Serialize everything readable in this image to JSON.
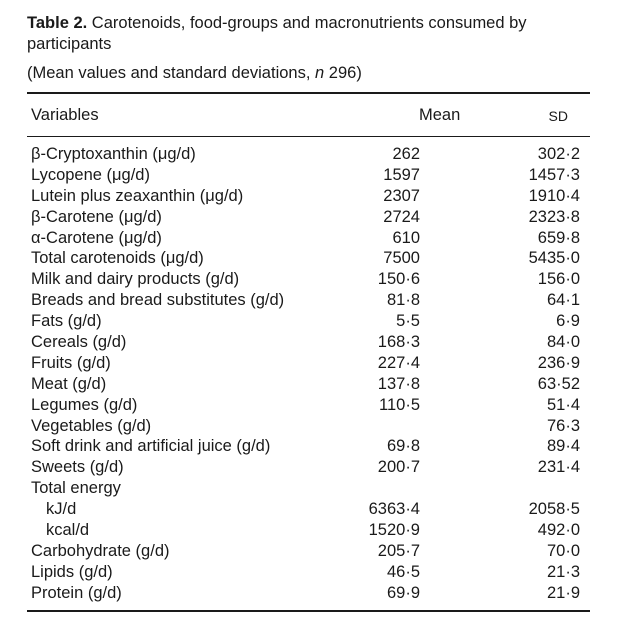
{
  "caption": {
    "label": "Table 2.",
    "text": " Carotenoids, food-groups and macronutrients consumed by participants"
  },
  "subcaption": {
    "prefix": "(Mean values and standard deviations, ",
    "n_symbol": "n",
    "suffix": " 296)"
  },
  "columns": {
    "variables": "Variables",
    "mean": "Mean",
    "sd": "SD"
  },
  "rows": [
    {
      "label": "β-Cryptoxanthin (μg/d)",
      "mean": "262",
      "sd": "302·2"
    },
    {
      "label": "Lycopene (μg/d)",
      "mean": "1597",
      "sd": "1457·3"
    },
    {
      "label": "Lutein plus zeaxanthin (μg/d)",
      "mean": "2307",
      "sd": "1910·4"
    },
    {
      "label": "β-Carotene (μg/d)",
      "mean": "2724",
      "sd": "2323·8"
    },
    {
      "label": "α-Carotene (μg/d)",
      "mean": "610",
      "sd": "659·8"
    },
    {
      "label": "Total carotenoids (μg/d)",
      "mean": "7500",
      "sd": "5435·0"
    },
    {
      "label": "Milk and dairy products (g/d)",
      "mean": "150·6",
      "sd": "156·0"
    },
    {
      "label": "Breads and bread substitutes (g/d)",
      "mean": "81·8",
      "sd": "64·1"
    },
    {
      "label": "Fats (g/d)",
      "mean": "5·5",
      "sd": "6·9"
    },
    {
      "label": "Cereals (g/d)",
      "mean": "168·3",
      "sd": "84·0"
    },
    {
      "label": "Fruits (g/d)",
      "mean": "227·4",
      "sd": "236·9"
    },
    {
      "label": "Meat (g/d)",
      "mean": "137·8",
      "sd": "63·52"
    },
    {
      "label": "Legumes (g/d)",
      "mean": "110·5",
      "sd": "51·4"
    },
    {
      "label": "Vegetables (g/d)",
      "mean": "",
      "sd": "76·3"
    },
    {
      "label": "Soft drink and artificial juice (g/d)",
      "mean": "69·8",
      "sd": "89·4"
    },
    {
      "label": "Sweets (g/d)",
      "mean": "200·7",
      "sd": "231·4"
    },
    {
      "label": "Total energy",
      "mean": "",
      "sd": ""
    },
    {
      "label": "kJ/d",
      "mean": "6363·4",
      "sd": "2058·5",
      "indent": true
    },
    {
      "label": "kcal/d",
      "mean": "1520·9",
      "sd": "492·0",
      "indent": true
    },
    {
      "label": "Carbohydrate (g/d)",
      "mean": "205·7",
      "sd": "70·0"
    },
    {
      "label": "Lipids (g/d)",
      "mean": "46·5",
      "sd": "21·3"
    },
    {
      "label": "Protein (g/d)",
      "mean": "69·9",
      "sd": "21·9"
    }
  ]
}
